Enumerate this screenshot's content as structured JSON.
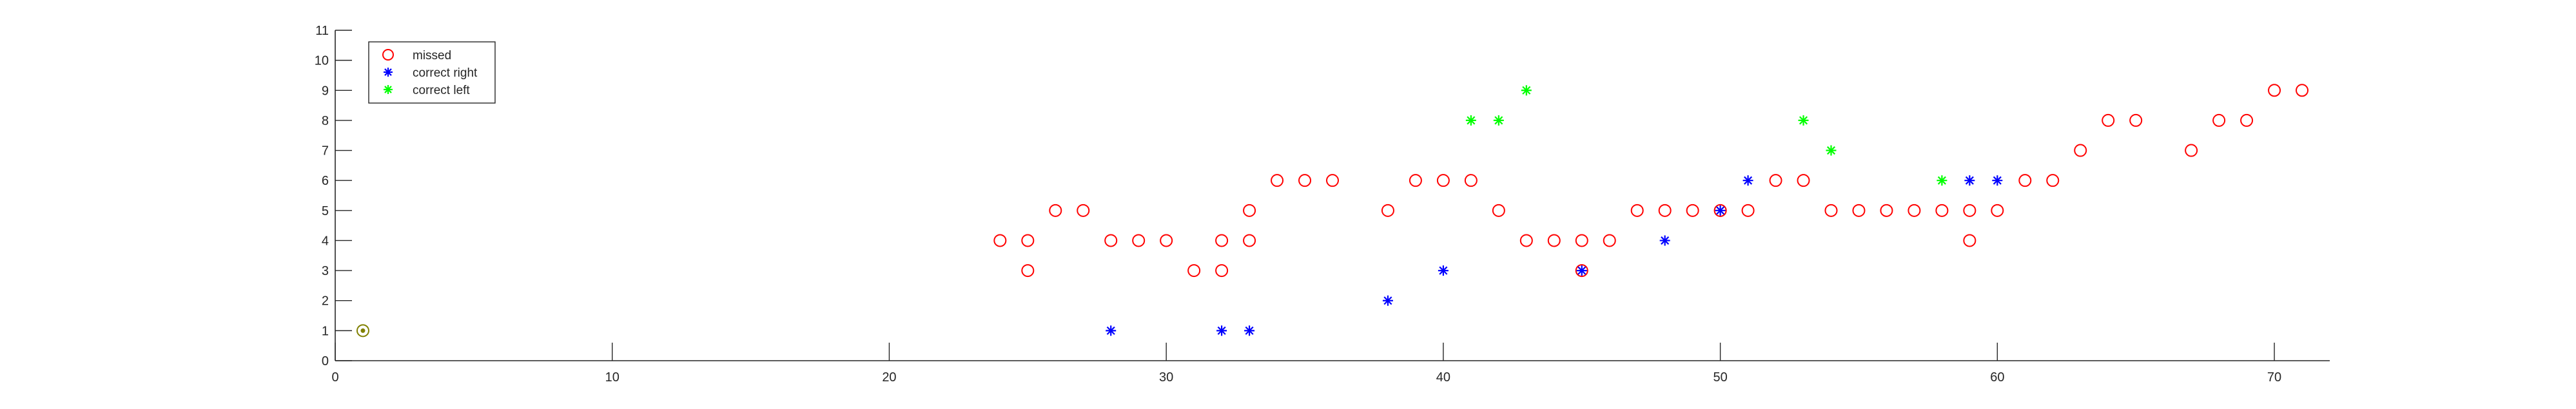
{
  "chart_data": {
    "type": "scatter",
    "title": "",
    "xlabel": "",
    "ylabel": "",
    "xlim": [
      0,
      72
    ],
    "ylim": [
      0,
      11
    ],
    "xticks": [
      0,
      10,
      20,
      30,
      40,
      50,
      60,
      70
    ],
    "yticks": [
      0,
      1,
      2,
      3,
      4,
      5,
      6,
      7,
      8,
      9,
      10,
      11
    ],
    "grid": false,
    "legend_position": "top-left",
    "series": [
      {
        "name": "missed",
        "marker": "circle",
        "color": "#ff0000",
        "points": [
          [
            24,
            4
          ],
          [
            25,
            4
          ],
          [
            25,
            3
          ],
          [
            26,
            5
          ],
          [
            27,
            5
          ],
          [
            28,
            4
          ],
          [
            29,
            4
          ],
          [
            30,
            4
          ],
          [
            31,
            3
          ],
          [
            32,
            4
          ],
          [
            32,
            3
          ],
          [
            33,
            4
          ],
          [
            33,
            5
          ],
          [
            34,
            6
          ],
          [
            35,
            6
          ],
          [
            36,
            6
          ],
          [
            38,
            5
          ],
          [
            39,
            6
          ],
          [
            40,
            6
          ],
          [
            41,
            6
          ],
          [
            42,
            5
          ],
          [
            43,
            4
          ],
          [
            44,
            4
          ],
          [
            45,
            4
          ],
          [
            45,
            3
          ],
          [
            46,
            4
          ],
          [
            47,
            5
          ],
          [
            48,
            5
          ],
          [
            49,
            5
          ],
          [
            50,
            5
          ],
          [
            51,
            5
          ],
          [
            52,
            6
          ],
          [
            53,
            6
          ],
          [
            54,
            5
          ],
          [
            55,
            5
          ],
          [
            56,
            5
          ],
          [
            57,
            5
          ],
          [
            58,
            5
          ],
          [
            59,
            5
          ],
          [
            59,
            4
          ],
          [
            60,
            5
          ],
          [
            61,
            6
          ],
          [
            62,
            6
          ],
          [
            63,
            7
          ],
          [
            64,
            8
          ],
          [
            65,
            8
          ],
          [
            67,
            7
          ],
          [
            68,
            8
          ],
          [
            69,
            8
          ],
          [
            70,
            9
          ],
          [
            71,
            9
          ]
        ]
      },
      {
        "name": "correct right",
        "marker": "star",
        "color": "#0000ff",
        "points": [
          [
            28,
            1
          ],
          [
            32,
            1
          ],
          [
            33,
            1
          ],
          [
            38,
            2
          ],
          [
            40,
            3
          ],
          [
            45,
            3
          ],
          [
            48,
            4
          ],
          [
            50,
            5
          ],
          [
            51,
            6
          ],
          [
            59,
            6
          ],
          [
            60,
            6
          ]
        ]
      },
      {
        "name": "correct left",
        "marker": "star",
        "color": "#00ff00",
        "points": [
          [
            41,
            8
          ],
          [
            42,
            8
          ],
          [
            43,
            9
          ],
          [
            53,
            8
          ],
          [
            54,
            7
          ],
          [
            58,
            6
          ]
        ]
      },
      {
        "marker": "circle-with-dot",
        "color": "#808000",
        "points": [
          [
            1,
            1
          ]
        ]
      }
    ]
  }
}
